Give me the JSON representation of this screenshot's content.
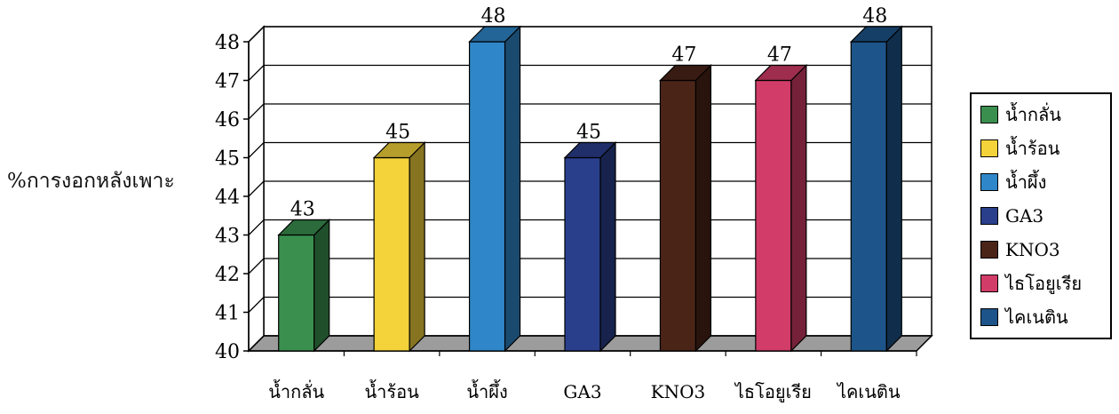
{
  "chart_data": {
    "type": "bar",
    "title": "",
    "xlabel": "",
    "ylabel": "%การงอกหลังเพาะ",
    "ylim": [
      40,
      48
    ],
    "yticks": [
      40,
      41,
      42,
      43,
      44,
      45,
      46,
      47,
      48
    ],
    "grid": true,
    "legend_position": "right",
    "categories": [
      "น้ำกลั่น",
      "น้ำร้อน",
      "น้ำผึ้ง",
      "GA3",
      "KNO3",
      "ไธโอยูเรีย",
      "ไคเนติน"
    ],
    "values": [
      43,
      45,
      48,
      45,
      47,
      47,
      48
    ],
    "colors": [
      "#3a8f4e",
      "#f3d23a",
      "#2f86c8",
      "#2a3f8c",
      "#4b2418",
      "#d23c68",
      "#1d5489"
    ],
    "data_labels": [
      "43",
      "45",
      "48",
      "45",
      "47",
      "47",
      "48"
    ]
  },
  "legend": {
    "items": [
      {
        "label": "น้ำกลั่น",
        "color": "#3a8f4e"
      },
      {
        "label": "น้ำร้อน",
        "color": "#f3d23a"
      },
      {
        "label": "น้ำผึ้ง",
        "color": "#2f86c8"
      },
      {
        "label": "GA3",
        "color": "#2a3f8c"
      },
      {
        "label": "KNO3",
        "color": "#4b2418"
      },
      {
        "label": "ไธโอยูเรีย",
        "color": "#d23c68"
      },
      {
        "label": "ไคเนติน",
        "color": "#1d5489"
      }
    ]
  }
}
